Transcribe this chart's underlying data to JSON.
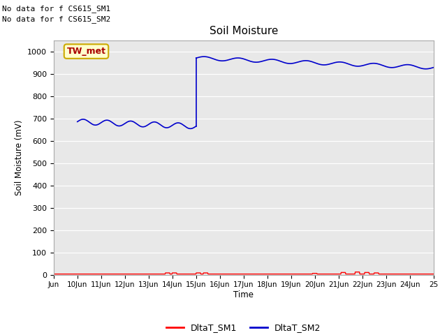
{
  "title": "Soil Moisture",
  "ylabel": "Soil Moisture (mV)",
  "xlabel": "Time",
  "bg_color": "#e8e8e8",
  "fig_bg_color": "#ffffff",
  "ylim": [
    0,
    1050
  ],
  "yticks": [
    0,
    100,
    200,
    300,
    400,
    500,
    600,
    700,
    800,
    900,
    1000
  ],
  "text_top_left": [
    "No data for f CS615_SM1",
    "No data for f CS615_SM2"
  ],
  "annotation_box_text": "TW_met",
  "annotation_box_color": "#ffffcc",
  "annotation_box_edge_color": "#ccaa00",
  "legend_labels": [
    "DltaT_SM1",
    "DltaT_SM2"
  ],
  "legend_colors": [
    "#ff0000",
    "#0000cc"
  ],
  "sm1_color": "#ff0000",
  "sm2_color": "#0000cc",
  "xtick_labels": [
    "Jun",
    "10Jun",
    "11Jun",
    "12Jun",
    "13Jun",
    "14Jun",
    "15Jun",
    "16Jun",
    "17Jun",
    "18Jun",
    "19Jun",
    "20Jun",
    "21Jun",
    "22Jun",
    "23Jun",
    "24Jun",
    "25"
  ],
  "xtick_positions": [
    0,
    1,
    2,
    3,
    4,
    5,
    6,
    7,
    8,
    9,
    10,
    11,
    12,
    13,
    14,
    15,
    16
  ],
  "xlim": [
    0,
    16
  ]
}
